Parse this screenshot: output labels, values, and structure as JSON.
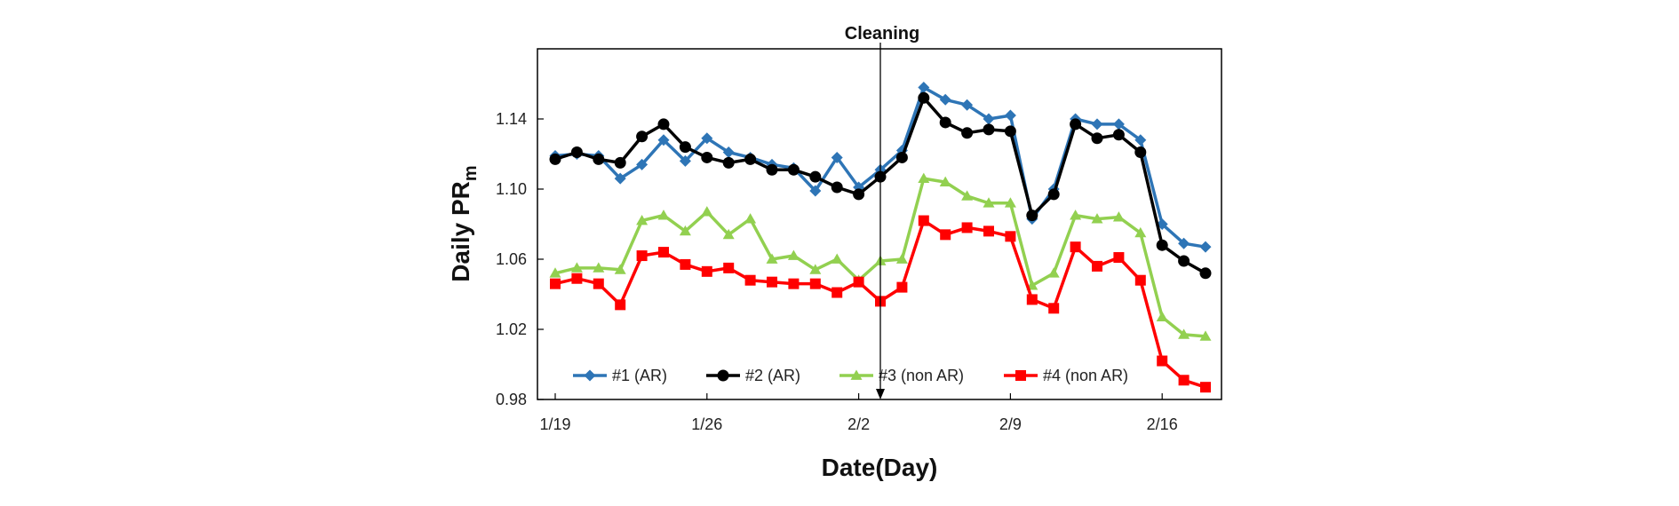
{
  "chart_data": {
    "type": "line",
    "title": "",
    "xlabel": "Date(Day)",
    "ylabel": "Daily PR",
    "ylabel_subscript": "m",
    "ylim": [
      0.98,
      1.18
    ],
    "yticks": [
      0.98,
      1.02,
      1.06,
      1.1,
      1.14
    ],
    "ytick_labels": [
      "0.98",
      "1.02",
      "1.06",
      "1.10",
      "1.14"
    ],
    "xticks": [
      0,
      7,
      14,
      21,
      28
    ],
    "xtick_labels": [
      "1/19",
      "1/26",
      "2/2",
      "2/9",
      "2/16"
    ],
    "x": [
      0,
      1,
      2,
      3,
      4,
      5,
      6,
      7,
      8,
      9,
      10,
      11,
      12,
      13,
      14,
      15,
      16,
      17,
      18,
      19,
      20,
      21,
      22,
      23,
      24,
      25,
      26,
      27,
      28,
      29,
      30
    ],
    "grid": false,
    "legend_position": "bottom",
    "annotation": {
      "text": "Cleaning",
      "x": 15
    },
    "series": [
      {
        "name": "#1 (AR)",
        "color": "#2e75b6",
        "marker": "diamond",
        "values": [
          1.119,
          1.12,
          1.119,
          1.106,
          1.114,
          1.128,
          1.116,
          1.129,
          1.121,
          1.118,
          1.114,
          1.112,
          1.099,
          1.118,
          1.101,
          1.111,
          1.122,
          1.158,
          1.151,
          1.148,
          1.14,
          1.142,
          1.083,
          1.1,
          1.14,
          1.137,
          1.137,
          1.128,
          1.08,
          1.069,
          1.067
        ]
      },
      {
        "name": "#2 (AR)",
        "color": "#000000",
        "marker": "circle",
        "values": [
          1.117,
          1.121,
          1.117,
          1.115,
          1.13,
          1.137,
          1.124,
          1.118,
          1.115,
          1.117,
          1.111,
          1.111,
          1.107,
          1.101,
          1.097,
          1.107,
          1.118,
          1.152,
          1.138,
          1.132,
          1.134,
          1.133,
          1.085,
          1.097,
          1.137,
          1.129,
          1.131,
          1.121,
          1.068,
          1.059,
          1.052
        ]
      },
      {
        "name": "#3 (non AR)",
        "color": "#92d050",
        "marker": "triangle",
        "values": [
          1.052,
          1.055,
          1.055,
          1.054,
          1.082,
          1.085,
          1.076,
          1.087,
          1.074,
          1.083,
          1.06,
          1.062,
          1.054,
          1.06,
          1.048,
          1.059,
          1.06,
          1.106,
          1.104,
          1.096,
          1.092,
          1.092,
          1.045,
          1.052,
          1.085,
          1.083,
          1.084,
          1.075,
          1.027,
          1.017,
          1.016
        ]
      },
      {
        "name": "#4 (non AR)",
        "color": "#ff0000",
        "marker": "square",
        "values": [
          1.046,
          1.049,
          1.046,
          1.034,
          1.062,
          1.064,
          1.057,
          1.053,
          1.055,
          1.048,
          1.047,
          1.046,
          1.046,
          1.041,
          1.047,
          1.036,
          1.044,
          1.082,
          1.074,
          1.078,
          1.076,
          1.073,
          1.037,
          1.032,
          1.067,
          1.056,
          1.061,
          1.048,
          1.002,
          0.991,
          0.987
        ]
      }
    ]
  }
}
